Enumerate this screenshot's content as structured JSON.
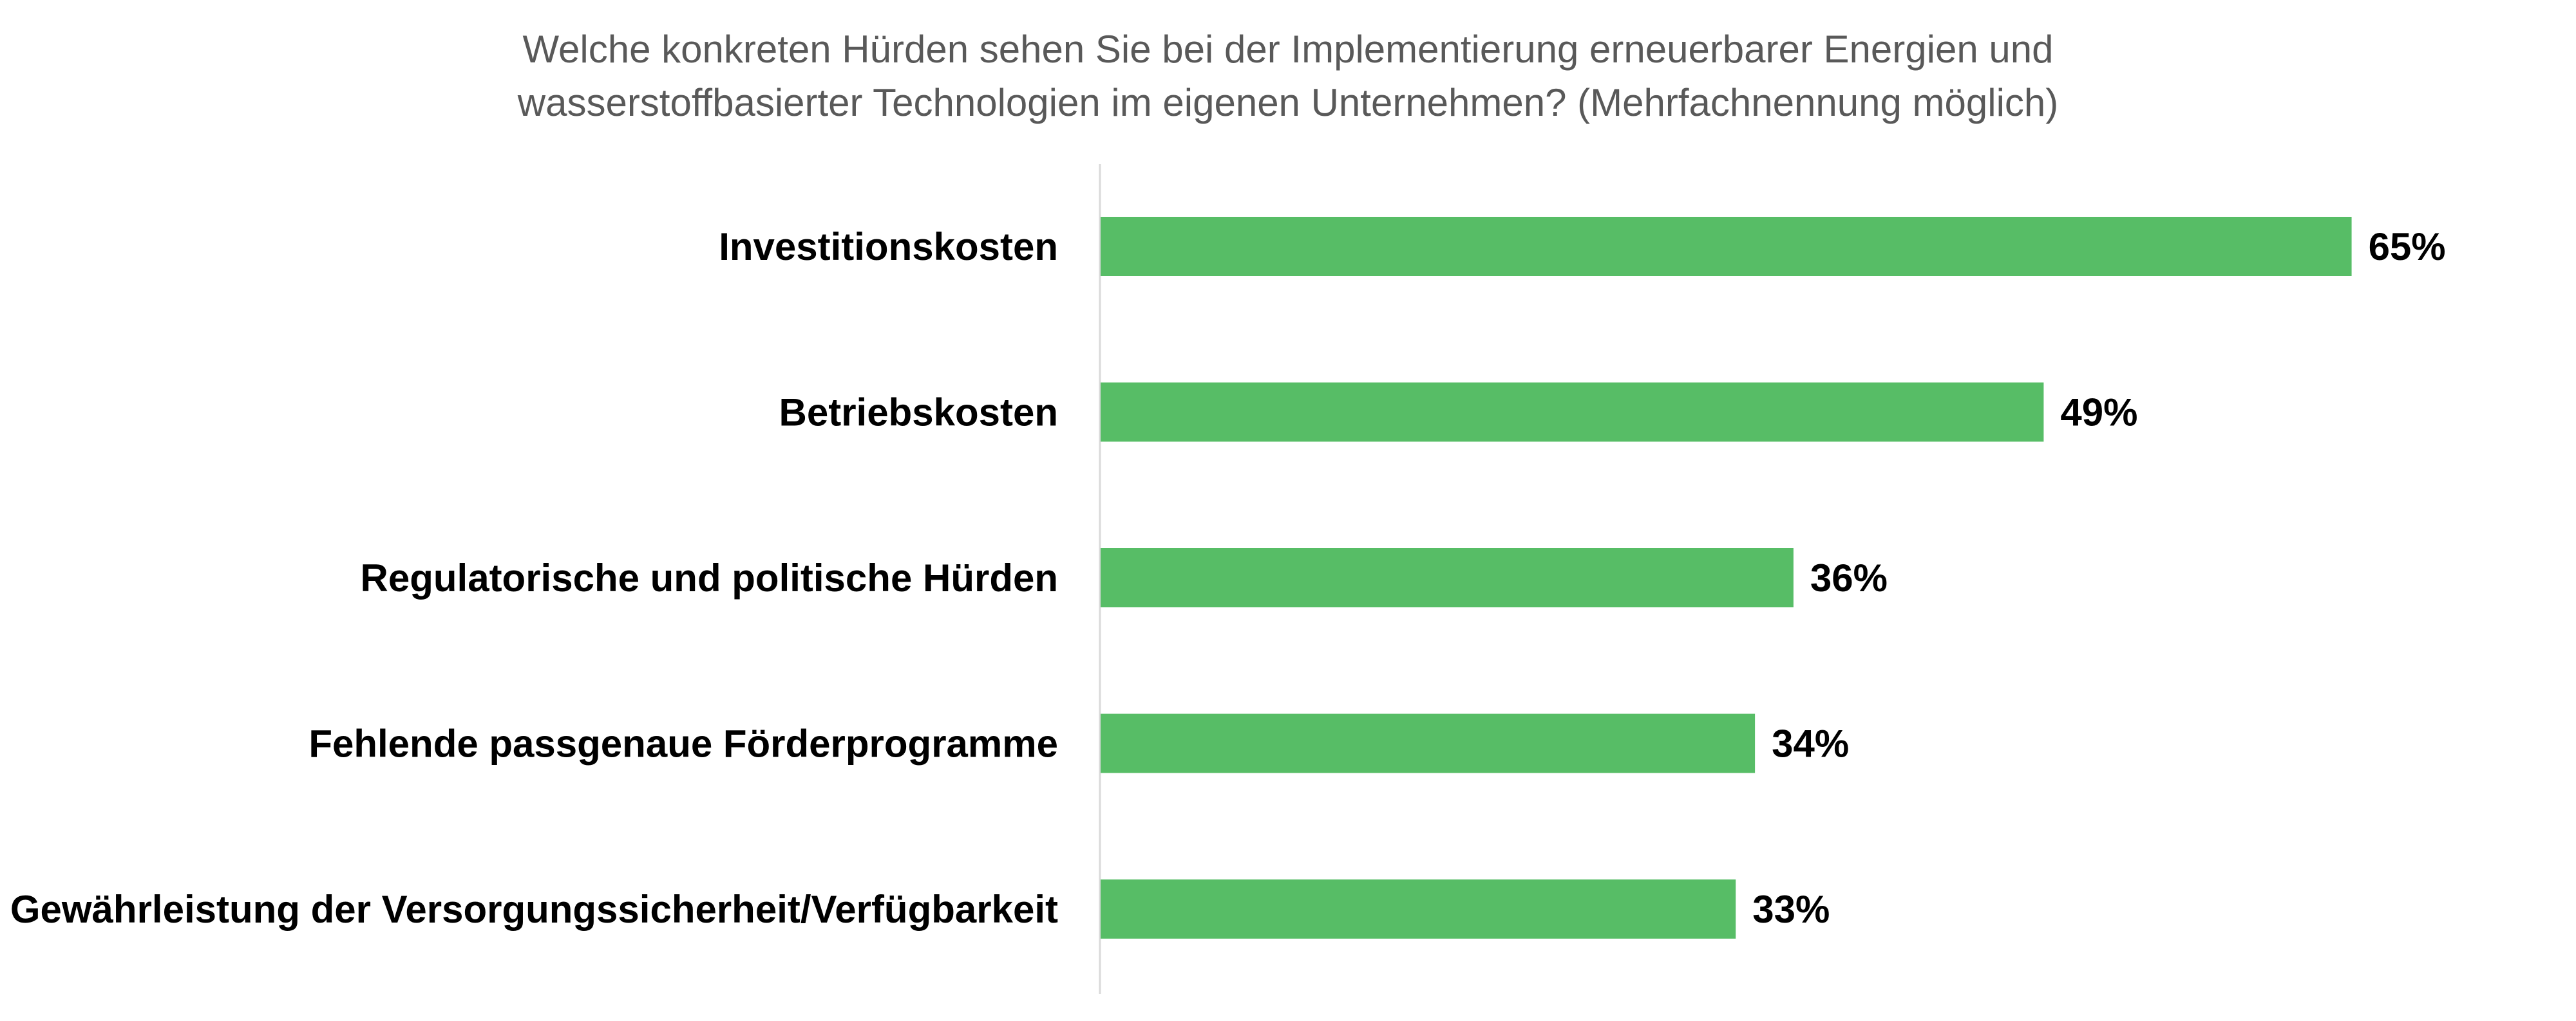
{
  "chart_data": {
    "type": "bar",
    "orientation": "horizontal",
    "title_lines": [
      "Welche konkreten Hürden sehen Sie bei der Implementierung erneuerbarer Energien und",
      "wasserstoffbasierter Technologien im eigenen Unternehmen? (Mehrfachnennung möglich)"
    ],
    "categories": [
      "Investitionskosten",
      "Betriebskosten",
      "Regulatorische und politische Hürden",
      "Fehlende passgenaue Förderprogramme",
      "Gewährleistung der Versorgungssicherheit/Verfügbarkeit"
    ],
    "values": [
      65,
      49,
      36,
      34,
      33
    ],
    "value_labels": [
      "65%",
      "49%",
      "36%",
      "34%",
      "33%"
    ],
    "xlim": [
      0,
      70
    ],
    "grid": false,
    "legend": "none",
    "colors": {
      "bar": "#57BD66",
      "axis": "#D9D9D9",
      "title": "#595959",
      "label": "#000000"
    }
  }
}
